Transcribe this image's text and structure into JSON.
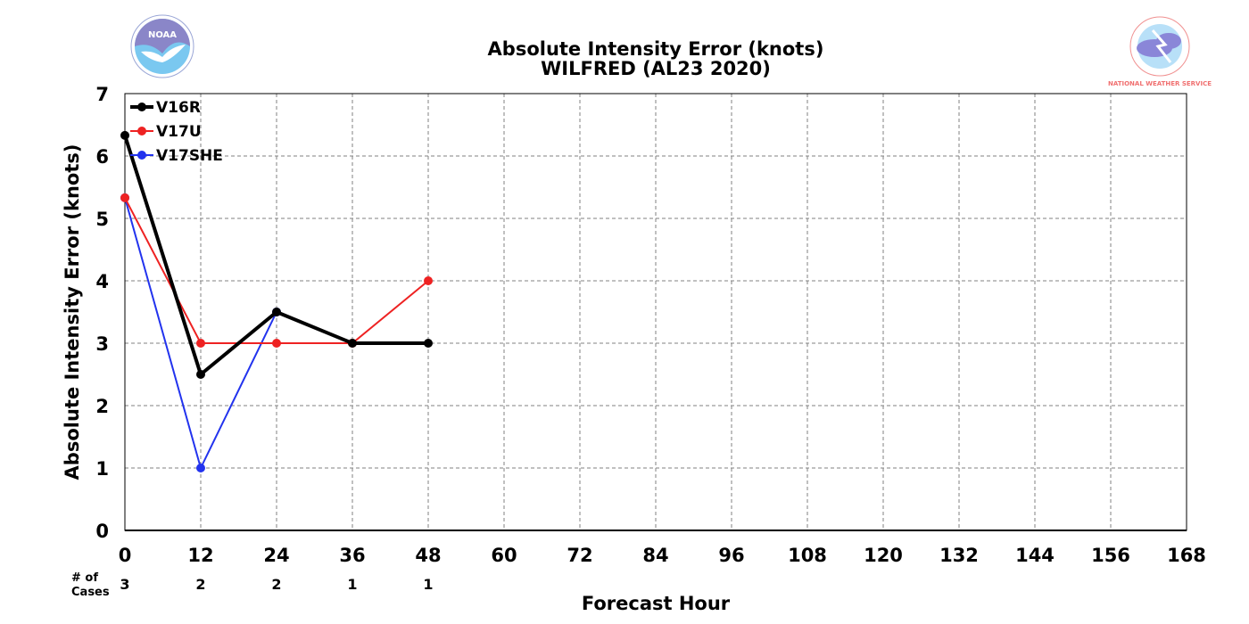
{
  "chart_data": {
    "type": "line",
    "title": "Absolute Intensity Error (knots)",
    "subtitle": "WILFRED (AL23 2020)",
    "xlabel": "Forecast Hour",
    "ylabel": "Absolute Intensity Error (knots)",
    "xlim": [
      0,
      168
    ],
    "ylim": [
      0,
      7
    ],
    "xticks": [
      0,
      12,
      24,
      36,
      48,
      60,
      72,
      84,
      96,
      108,
      120,
      132,
      144,
      156,
      168
    ],
    "yticks": [
      0,
      1,
      2,
      3,
      4,
      5,
      6,
      7
    ],
    "grid": true,
    "legend_position": "top-left",
    "series": [
      {
        "name": "V16R",
        "color": "#000000",
        "width": 4,
        "x": [
          0,
          12,
          24,
          36,
          48
        ],
        "values": [
          6.33,
          2.5,
          3.5,
          3.0,
          3.0
        ]
      },
      {
        "name": "V17U",
        "color": "#ee2222",
        "width": 2,
        "x": [
          0,
          12,
          24,
          36,
          48
        ],
        "values": [
          5.33,
          3.0,
          3.0,
          3.0,
          4.0
        ]
      },
      {
        "name": "V17SHE",
        "color": "#2233ee",
        "width": 2,
        "x": [
          0,
          12,
          24
        ],
        "values": [
          5.33,
          1.0,
          3.5
        ]
      }
    ],
    "cases": {
      "label_line1": "# of",
      "label_line2": "Cases",
      "x": [
        0,
        12,
        24,
        36,
        48
      ],
      "counts": [
        "3",
        "2",
        "2",
        "1",
        "1"
      ]
    }
  },
  "logos": {
    "left": {
      "icon": "noaa-logo-icon",
      "text": "NOAA",
      "color": "#7ac8f0",
      "accent": "#8a86c8"
    },
    "right": {
      "icon": "nws-logo-icon",
      "text": "NATIONAL WEATHER SERVICE",
      "color": "#f07070",
      "accent": "#8a86d8"
    }
  }
}
